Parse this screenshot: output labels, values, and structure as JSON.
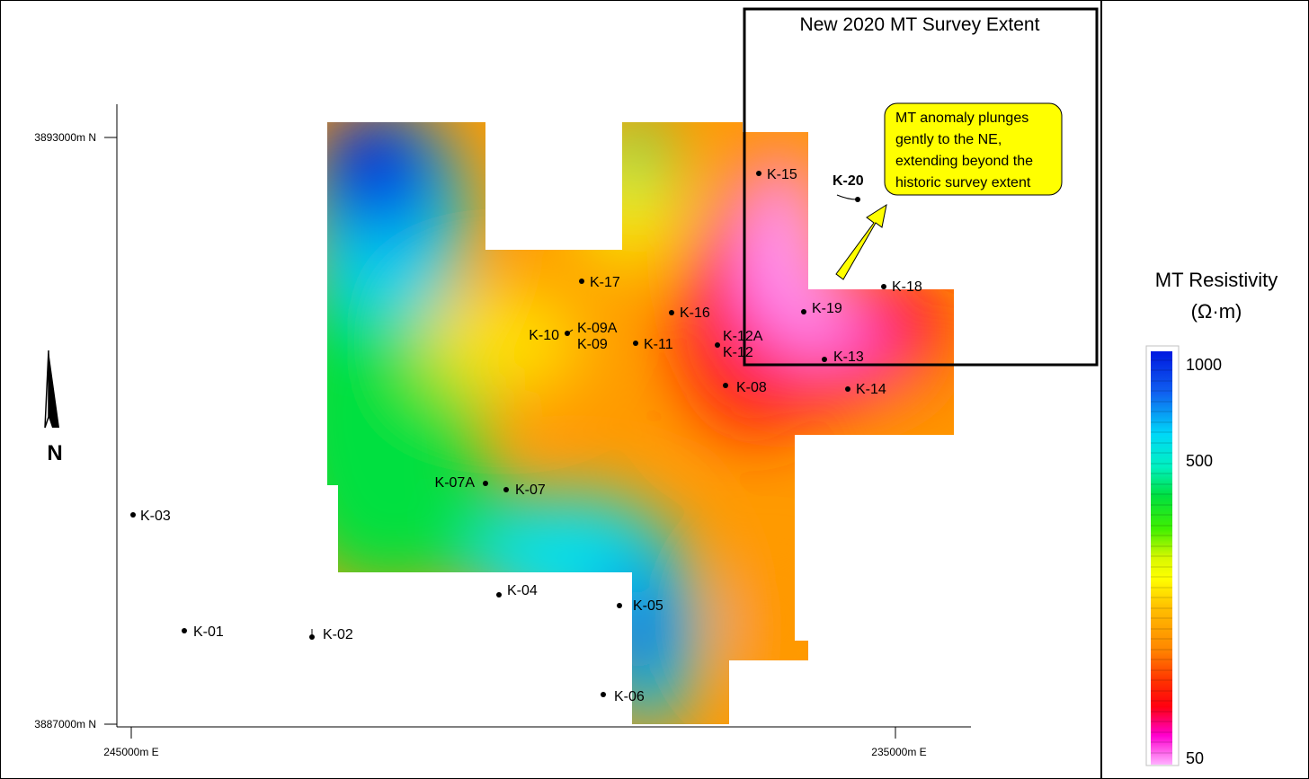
{
  "map": {
    "survey_box_title": "New 2020 MT Survey Extent",
    "callout_lines": [
      "MT anomaly plunges",
      "gently to the NE,",
      "extending beyond the",
      "historic survey extent"
    ],
    "north_label": "N",
    "axes": {
      "y_top_label": "3893000m N",
      "y_bottom_label": "3887000m N",
      "x_left_label": "245000m E",
      "x_right_label": "235000m E"
    },
    "wells": [
      {
        "id": "K-15",
        "text": "K-15"
      },
      {
        "id": "K-20",
        "text": "K-20"
      },
      {
        "id": "K-17",
        "text": "K-17"
      },
      {
        "id": "K-18",
        "text": "K-18"
      },
      {
        "id": "K-16",
        "text": "K-16"
      },
      {
        "id": "K-19",
        "text": "K-19"
      },
      {
        "id": "K-10",
        "text": "K-10"
      },
      {
        "id": "K-09A",
        "text": "K-09A"
      },
      {
        "id": "K-09",
        "text": "K-09"
      },
      {
        "id": "K-11",
        "text": "K-11"
      },
      {
        "id": "K-12A",
        "text": "K-12A"
      },
      {
        "id": "K-12",
        "text": "K-12"
      },
      {
        "id": "K-13",
        "text": "K-13"
      },
      {
        "id": "K-08",
        "text": "K-08"
      },
      {
        "id": "K-14",
        "text": "K-14"
      },
      {
        "id": "K-07A",
        "text": "K-07A"
      },
      {
        "id": "K-07",
        "text": "K-07"
      },
      {
        "id": "K-03",
        "text": "K-03"
      },
      {
        "id": "K-04",
        "text": "K-04"
      },
      {
        "id": "K-05",
        "text": "K-05"
      },
      {
        "id": "K-01",
        "text": "K-01"
      },
      {
        "id": "K-02",
        "text": "K-02"
      },
      {
        "id": "K-06",
        "text": "K-06"
      }
    ]
  },
  "legend": {
    "title_line1": "MT Resistivity",
    "title_line2": "(Ω·m)",
    "tick_labels": [
      "1000",
      "500",
      "50"
    ],
    "colors": {
      "high": "#0018e0",
      "cyan": "#00ecf0",
      "green": "#00e830",
      "yellow": "#ffff00",
      "orange": "#ff9800",
      "red": "#ff1010",
      "magenta": "#ff00e0",
      "low": "#ffb0ff"
    }
  },
  "colors": {
    "callout_fill": "#ffff00",
    "frame": "#000000"
  }
}
